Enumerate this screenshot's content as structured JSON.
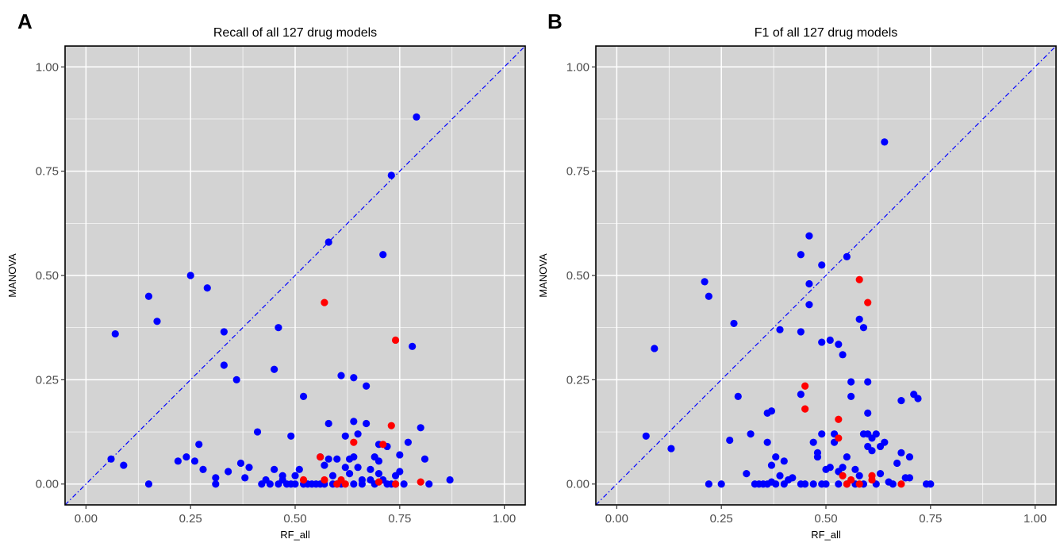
{
  "chart_data": [
    {
      "type": "scatter",
      "panel_label": "A",
      "title": "Recall of all 127 drug models",
      "xlabel": "RF_all",
      "ylabel": "MANOVA",
      "xlim": [
        -0.05,
        1.05
      ],
      "ylim": [
        -0.05,
        1.05
      ],
      "xticks": [
        "0.00",
        "0.25",
        "0.50",
        "0.75",
        "1.00"
      ],
      "yticks": [
        "0.00",
        "0.25",
        "0.50",
        "0.75",
        "1.00"
      ],
      "grid": true,
      "reference_line": "y = x",
      "colors": {
        "panel_bg": "#d3d3d3",
        "grid": "#ffffff",
        "point_blue": "#0000ff",
        "point_red": "#ff0000",
        "diagonal": "#0000ff"
      },
      "series": [
        {
          "color": "blue",
          "points": [
            [
              0.06,
              0.06
            ],
            [
              0.07,
              0.36
            ],
            [
              0.09,
              0.045
            ],
            [
              0.15,
              0.45
            ],
            [
              0.15,
              0.0
            ],
            [
              0.17,
              0.39
            ],
            [
              0.22,
              0.055
            ],
            [
              0.24,
              0.065
            ],
            [
              0.25,
              0.5
            ],
            [
              0.26,
              0.055
            ],
            [
              0.27,
              0.095
            ],
            [
              0.28,
              0.035
            ],
            [
              0.29,
              0.47
            ],
            [
              0.31,
              0.0
            ],
            [
              0.31,
              0.015
            ],
            [
              0.33,
              0.365
            ],
            [
              0.33,
              0.285
            ],
            [
              0.34,
              0.03
            ],
            [
              0.36,
              0.25
            ],
            [
              0.37,
              0.05
            ],
            [
              0.38,
              0.015
            ],
            [
              0.39,
              0.04
            ],
            [
              0.41,
              0.125
            ],
            [
              0.42,
              0.0
            ],
            [
              0.43,
              0.01
            ],
            [
              0.44,
              0.0
            ],
            [
              0.45,
              0.035
            ],
            [
              0.45,
              0.275
            ],
            [
              0.46,
              0.375
            ],
            [
              0.46,
              0.0
            ],
            [
              0.47,
              0.02
            ],
            [
              0.47,
              0.01
            ],
            [
              0.48,
              0.0
            ],
            [
              0.49,
              0.115
            ],
            [
              0.49,
              0.0
            ],
            [
              0.5,
              0.02
            ],
            [
              0.5,
              0.0
            ],
            [
              0.51,
              0.035
            ],
            [
              0.52,
              0.0
            ],
            [
              0.52,
              0.21
            ],
            [
              0.53,
              0.0
            ],
            [
              0.54,
              0.0
            ],
            [
              0.55,
              0.0
            ],
            [
              0.56,
              0.0
            ],
            [
              0.56,
              0.065
            ],
            [
              0.57,
              0.045
            ],
            [
              0.57,
              0.0
            ],
            [
              0.58,
              0.58
            ],
            [
              0.58,
              0.145
            ],
            [
              0.58,
              0.06
            ],
            [
              0.59,
              0.0
            ],
            [
              0.59,
              0.02
            ],
            [
              0.6,
              0.06
            ],
            [
              0.6,
              0.0
            ],
            [
              0.61,
              0.26
            ],
            [
              0.61,
              0.0
            ],
            [
              0.62,
              0.115
            ],
            [
              0.62,
              0.04
            ],
            [
              0.63,
              0.06
            ],
            [
              0.63,
              0.025
            ],
            [
              0.64,
              0.15
            ],
            [
              0.64,
              0.255
            ],
            [
              0.64,
              0.065
            ],
            [
              0.64,
              0.0
            ],
            [
              0.65,
              0.12
            ],
            [
              0.65,
              0.04
            ],
            [
              0.66,
              0.01
            ],
            [
              0.66,
              0.0
            ],
            [
              0.67,
              0.235
            ],
            [
              0.67,
              0.145
            ],
            [
              0.68,
              0.035
            ],
            [
              0.68,
              0.01
            ],
            [
              0.69,
              0.0
            ],
            [
              0.69,
              0.065
            ],
            [
              0.7,
              0.095
            ],
            [
              0.7,
              0.055
            ],
            [
              0.7,
              0.025
            ],
            [
              0.71,
              0.55
            ],
            [
              0.71,
              0.01
            ],
            [
              0.72,
              0.09
            ],
            [
              0.72,
              0.0
            ],
            [
              0.73,
              0.74
            ],
            [
              0.73,
              0.0
            ],
            [
              0.74,
              0.02
            ],
            [
              0.74,
              0.0
            ],
            [
              0.75,
              0.03
            ],
            [
              0.75,
              0.07
            ],
            [
              0.76,
              0.0
            ],
            [
              0.77,
              0.1
            ],
            [
              0.78,
              0.33
            ],
            [
              0.79,
              0.88
            ],
            [
              0.8,
              0.135
            ],
            [
              0.81,
              0.06
            ],
            [
              0.82,
              0.0
            ],
            [
              0.87,
              0.01
            ]
          ]
        },
        {
          "color": "red",
          "points": [
            [
              0.52,
              0.01
            ],
            [
              0.56,
              0.065
            ],
            [
              0.57,
              0.435
            ],
            [
              0.57,
              0.01
            ],
            [
              0.6,
              0.0
            ],
            [
              0.61,
              0.01
            ],
            [
              0.62,
              0.0
            ],
            [
              0.64,
              0.1
            ],
            [
              0.7,
              0.005
            ],
            [
              0.71,
              0.095
            ],
            [
              0.73,
              0.14
            ],
            [
              0.74,
              0.345
            ],
            [
              0.74,
              0.0
            ],
            [
              0.8,
              0.005
            ]
          ]
        }
      ]
    },
    {
      "type": "scatter",
      "panel_label": "B",
      "title": "F1 of all 127 drug models",
      "xlabel": "RF_all",
      "ylabel": "MANOVA",
      "xlim": [
        -0.05,
        1.05
      ],
      "ylim": [
        -0.05,
        1.05
      ],
      "xticks": [
        "0.00",
        "0.25",
        "0.50",
        "0.75",
        "1.00"
      ],
      "yticks": [
        "0.00",
        "0.25",
        "0.50",
        "0.75",
        "1.00"
      ],
      "grid": true,
      "reference_line": "y = x",
      "colors": {
        "panel_bg": "#d3d3d3",
        "grid": "#ffffff",
        "point_blue": "#0000ff",
        "point_red": "#ff0000",
        "diagonal": "#0000ff"
      },
      "series": [
        {
          "color": "blue",
          "points": [
            [
              0.07,
              0.115
            ],
            [
              0.09,
              0.325
            ],
            [
              0.13,
              0.085
            ],
            [
              0.21,
              0.485
            ],
            [
              0.22,
              0.45
            ],
            [
              0.22,
              0.0
            ],
            [
              0.25,
              0.0
            ],
            [
              0.27,
              0.105
            ],
            [
              0.28,
              0.385
            ],
            [
              0.29,
              0.21
            ],
            [
              0.31,
              0.025
            ],
            [
              0.32,
              0.12
            ],
            [
              0.33,
              0.0
            ],
            [
              0.34,
              0.0
            ],
            [
              0.35,
              0.0
            ],
            [
              0.36,
              0.0
            ],
            [
              0.36,
              0.17
            ],
            [
              0.36,
              0.1
            ],
            [
              0.37,
              0.005
            ],
            [
              0.37,
              0.175
            ],
            [
              0.37,
              0.045
            ],
            [
              0.38,
              0.0
            ],
            [
              0.38,
              0.065
            ],
            [
              0.39,
              0.37
            ],
            [
              0.39,
              0.02
            ],
            [
              0.4,
              0.0
            ],
            [
              0.4,
              0.055
            ],
            [
              0.41,
              0.01
            ],
            [
              0.42,
              0.015
            ],
            [
              0.44,
              0.0
            ],
            [
              0.44,
              0.55
            ],
            [
              0.44,
              0.365
            ],
            [
              0.44,
              0.215
            ],
            [
              0.45,
              0.0
            ],
            [
              0.46,
              0.595
            ],
            [
              0.46,
              0.48
            ],
            [
              0.46,
              0.43
            ],
            [
              0.47,
              0.0
            ],
            [
              0.47,
              0.1
            ],
            [
              0.48,
              0.075
            ],
            [
              0.48,
              0.065
            ],
            [
              0.49,
              0.0
            ],
            [
              0.49,
              0.12
            ],
            [
              0.49,
              0.525
            ],
            [
              0.49,
              0.34
            ],
            [
              0.5,
              0.035
            ],
            [
              0.5,
              0.0
            ],
            [
              0.51,
              0.345
            ],
            [
              0.51,
              0.04
            ],
            [
              0.52,
              0.12
            ],
            [
              0.52,
              0.1
            ],
            [
              0.53,
              0.03
            ],
            [
              0.53,
              0.0
            ],
            [
              0.53,
              0.335
            ],
            [
              0.54,
              0.31
            ],
            [
              0.54,
              0.04
            ],
            [
              0.55,
              0.545
            ],
            [
              0.55,
              0.065
            ],
            [
              0.55,
              0.0
            ],
            [
              0.56,
              0.245
            ],
            [
              0.56,
              0.21
            ],
            [
              0.57,
              0.0
            ],
            [
              0.57,
              0.035
            ],
            [
              0.58,
              0.02
            ],
            [
              0.58,
              0.395
            ],
            [
              0.59,
              0.375
            ],
            [
              0.59,
              0.12
            ],
            [
              0.59,
              0.0
            ],
            [
              0.6,
              0.245
            ],
            [
              0.6,
              0.12
            ],
            [
              0.6,
              0.09
            ],
            [
              0.6,
              0.17
            ],
            [
              0.61,
              0.11
            ],
            [
              0.61,
              0.08
            ],
            [
              0.62,
              0.12
            ],
            [
              0.62,
              0.0
            ],
            [
              0.63,
              0.09
            ],
            [
              0.63,
              0.025
            ],
            [
              0.64,
              0.82
            ],
            [
              0.64,
              0.1
            ],
            [
              0.65,
              0.005
            ],
            [
              0.66,
              0.0
            ],
            [
              0.67,
              0.05
            ],
            [
              0.68,
              0.075
            ],
            [
              0.68,
              0.2
            ],
            [
              0.69,
              0.015
            ],
            [
              0.7,
              0.065
            ],
            [
              0.7,
              0.015
            ],
            [
              0.71,
              0.215
            ],
            [
              0.72,
              0.205
            ],
            [
              0.74,
              0.0
            ],
            [
              0.75,
              0.0
            ]
          ]
        },
        {
          "color": "red",
          "points": [
            [
              0.45,
              0.235
            ],
            [
              0.45,
              0.18
            ],
            [
              0.53,
              0.155
            ],
            [
              0.53,
              0.11
            ],
            [
              0.54,
              0.02
            ],
            [
              0.55,
              0.0
            ],
            [
              0.56,
              0.01
            ],
            [
              0.58,
              0.49
            ],
            [
              0.58,
              0.0
            ],
            [
              0.6,
              0.435
            ],
            [
              0.61,
              0.01
            ],
            [
              0.61,
              0.02
            ],
            [
              0.68,
              0.0
            ]
          ]
        }
      ]
    }
  ]
}
